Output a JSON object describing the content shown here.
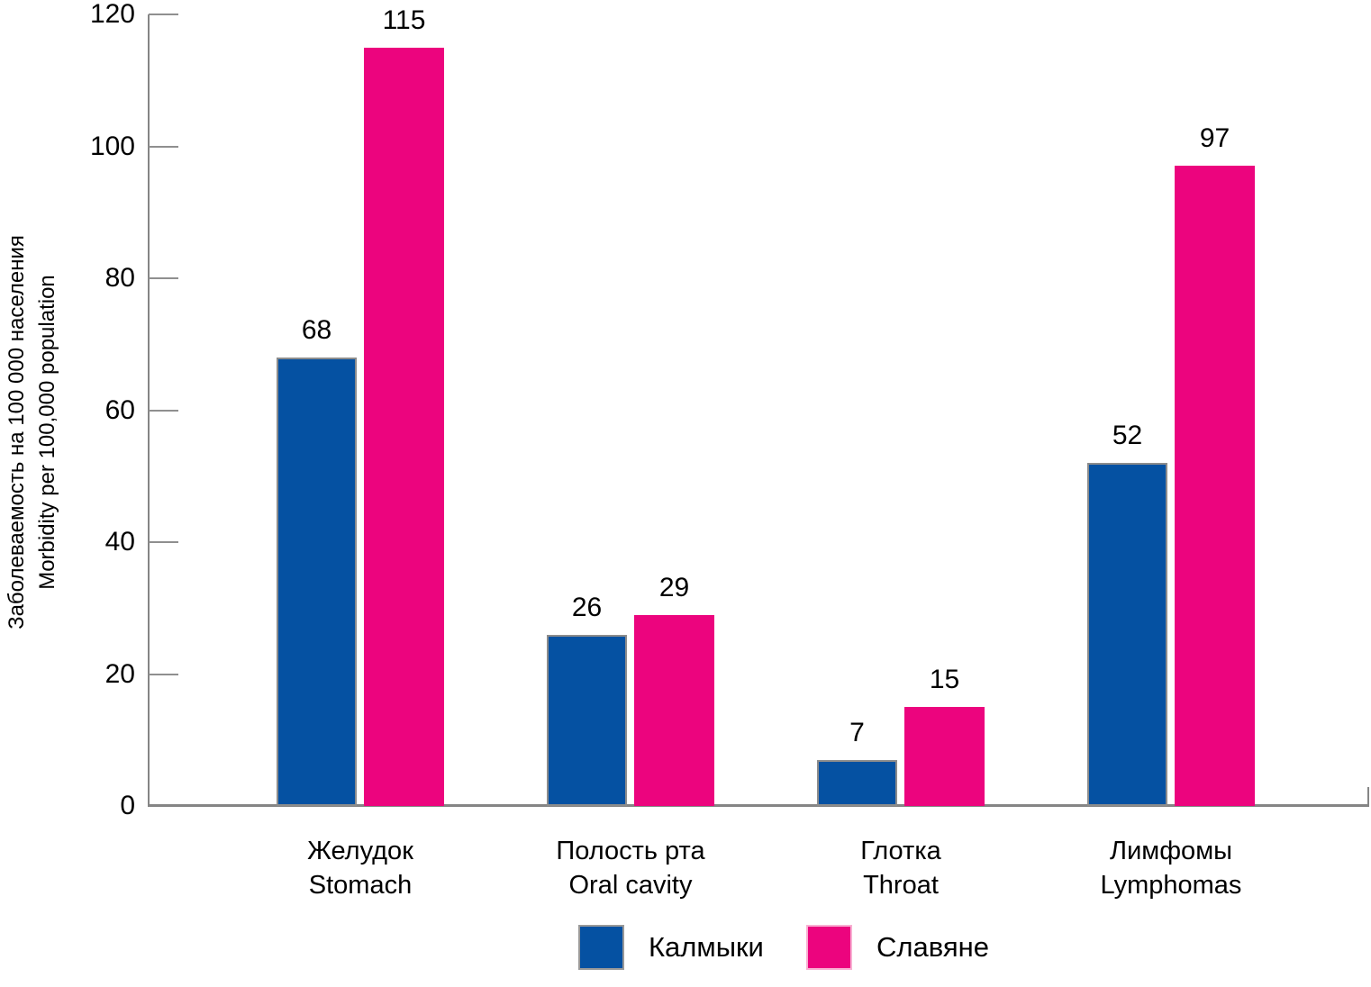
{
  "chart_data": {
    "type": "bar",
    "title": "",
    "ylabel_lines": [
      "Заболеваемость на 100 000 населения",
      "Morbidity per 100,000 population"
    ],
    "categories": [
      {
        "ru": "Желудок",
        "en": "Stomach"
      },
      {
        "ru": "Полость рта",
        "en": "Oral cavity"
      },
      {
        "ru": "Глотка",
        "en": "Throat"
      },
      {
        "ru": "Лимфомы",
        "en": "Lymphomas"
      }
    ],
    "series": [
      {
        "name": "Калмыки",
        "color": "#0551A2",
        "border_color": "#8C8C8C",
        "legend_border_color": "#999999",
        "values": [
          68,
          26,
          7,
          52
        ]
      },
      {
        "name": "Славяне",
        "color": "#EC047E",
        "border_color": "",
        "legend_border_color": "#F8B0D2",
        "values": [
          115,
          29,
          15,
          97
        ]
      }
    ],
    "y_axis": {
      "min": 0,
      "max": 120,
      "tick_step": 20,
      "tick_labels": [
        "0",
        "20",
        "40",
        "60",
        "80",
        "100",
        "120"
      ]
    },
    "grid": false,
    "legend_position": "bottom",
    "axis_color": "#858585"
  }
}
